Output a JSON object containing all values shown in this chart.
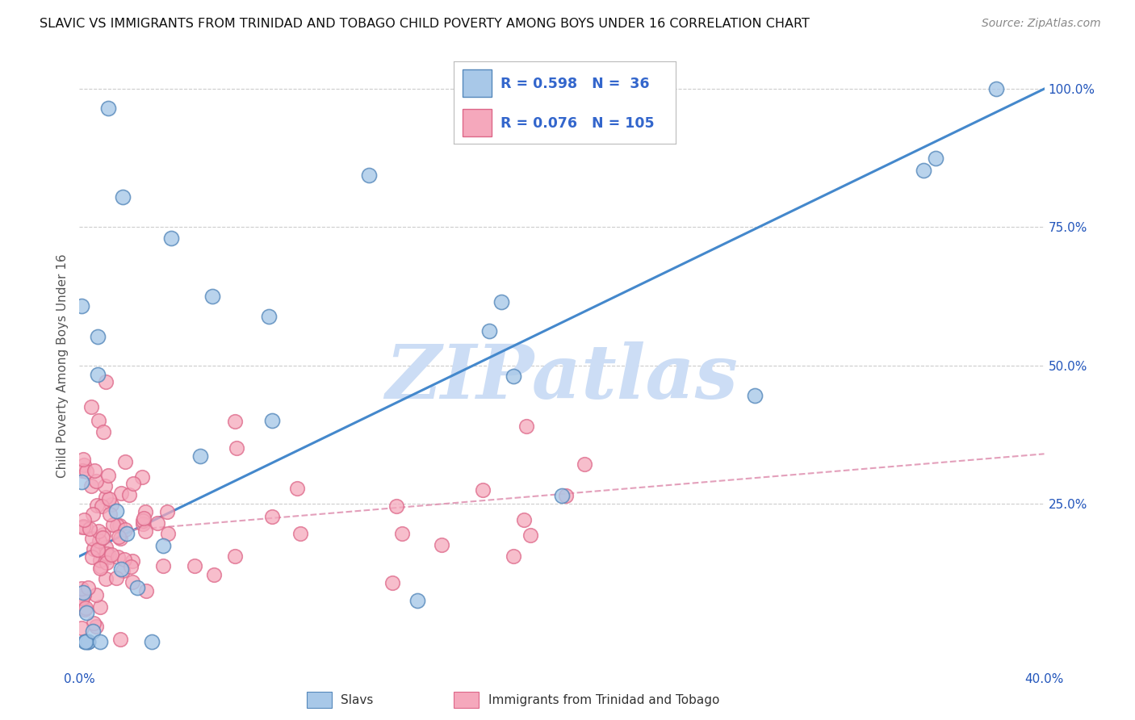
{
  "title": "SLAVIC VS IMMIGRANTS FROM TRINIDAD AND TOBAGO CHILD POVERTY AMONG BOYS UNDER 16 CORRELATION CHART",
  "source": "Source: ZipAtlas.com",
  "ylabel": "Child Poverty Among Boys Under 16",
  "xlim": [
    0.0,
    0.4
  ],
  "ylim": [
    -0.05,
    1.05
  ],
  "xticks": [
    0.0,
    0.1,
    0.2,
    0.3,
    0.4
  ],
  "xtick_labels": [
    "0.0%",
    "",
    "",
    "",
    "40.0%"
  ],
  "ytick_labels_right": [
    "25.0%",
    "50.0%",
    "75.0%",
    "100.0%"
  ],
  "yticks": [
    0.0,
    0.25,
    0.5,
    0.75,
    1.0
  ],
  "slavs_color": "#a8c8e8",
  "slavs_edge": "#5588bb",
  "tt_color": "#f5a8bc",
  "tt_edge": "#dd6688",
  "slavs_R": 0.598,
  "slavs_N": 36,
  "tt_R": 0.076,
  "tt_N": 105,
  "watermark": "ZIPatlas",
  "watermark_color": "#ccddf5",
  "legend_R_color": "#3366cc",
  "line_slavs_color": "#4488cc",
  "line_tt_color": "#dd88aa",
  "grid_color": "#cccccc",
  "title_color": "#111111",
  "source_color": "#888888"
}
